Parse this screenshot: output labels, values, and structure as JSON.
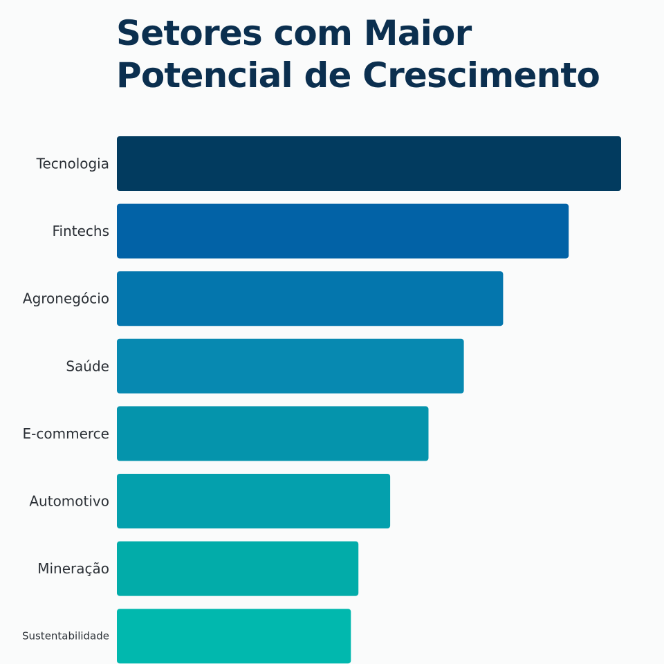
{
  "chart_data": {
    "type": "bar",
    "orientation": "horizontal",
    "title_lines": [
      "Setores com Maior",
      "Potencial de Crescimento"
    ],
    "categories": [
      "Tecnologia",
      "Fintechs",
      "Agronegócio",
      "Saúde",
      "E-commerce",
      "Automotivo",
      "Mineração",
      "Sustentabilidade"
    ],
    "values": [
      100,
      89.6,
      76.6,
      68.8,
      61.8,
      54.2,
      47.9,
      46.4
    ],
    "xlim": [
      0,
      100
    ],
    "colors": [
      "#023b5f",
      "#0262a6",
      "#0476ad",
      "#0789b1",
      "#0594ac",
      "#04a0ad",
      "#02aca9",
      "#01b8ae"
    ],
    "axis_visible": false,
    "grid": false,
    "legend": "none"
  }
}
